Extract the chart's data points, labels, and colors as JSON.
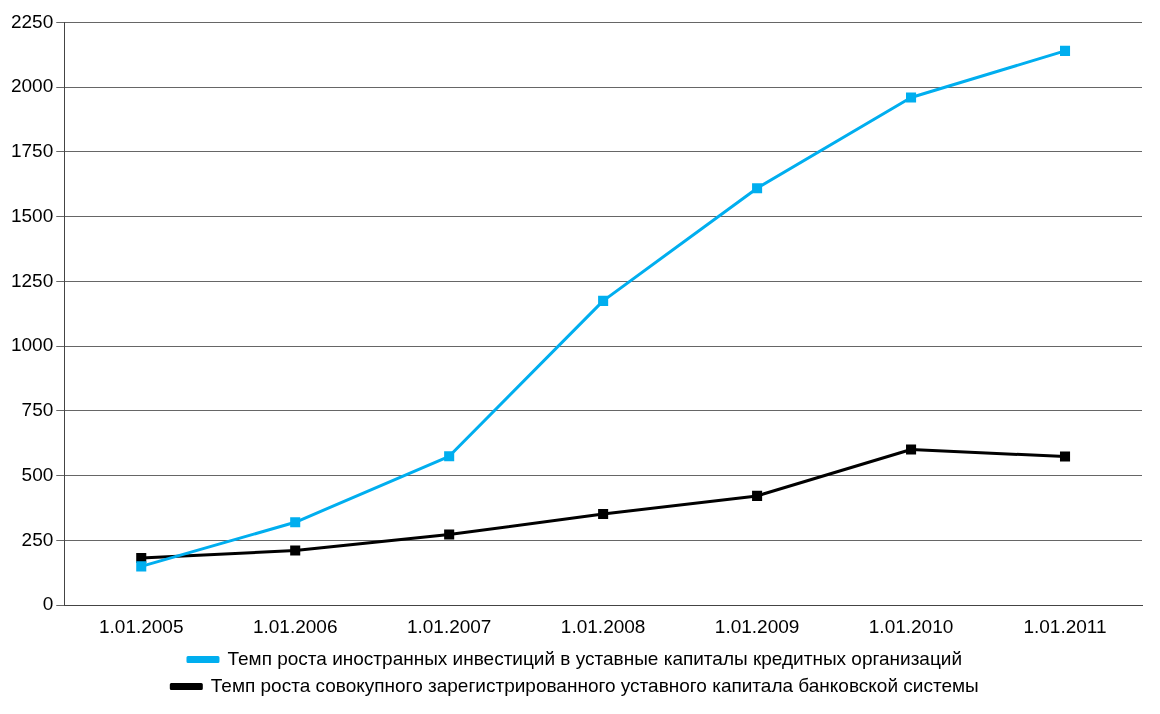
{
  "chart_data": {
    "type": "line",
    "categories": [
      "1.01.2005",
      "1.01.2006",
      "1.01.2007",
      "1.01.2008",
      "1.01.2009",
      "1.01.2010",
      "1.01.2011"
    ],
    "series": [
      {
        "name": "Темп роста иностранных инвестиций в уставные капиталы кредитных организаций",
        "color": "#00aeef",
        "values": [
          150,
          320,
          575,
          1175,
          1610,
          1960,
          2140
        ]
      },
      {
        "name": "Темп роста совокупного зарегистрированного уставного капитала банковской системы",
        "color": "#000000",
        "values": [
          182,
          211,
          273,
          352,
          422,
          601,
          574
        ]
      }
    ],
    "ylim": [
      0,
      2250
    ],
    "yticks": [
      0,
      250,
      500,
      750,
      1000,
      1250,
      1500,
      1750,
      2000,
      2250
    ],
    "grid": "y",
    "legend": "bottom",
    "marker": "square",
    "line_style": "solid"
  }
}
